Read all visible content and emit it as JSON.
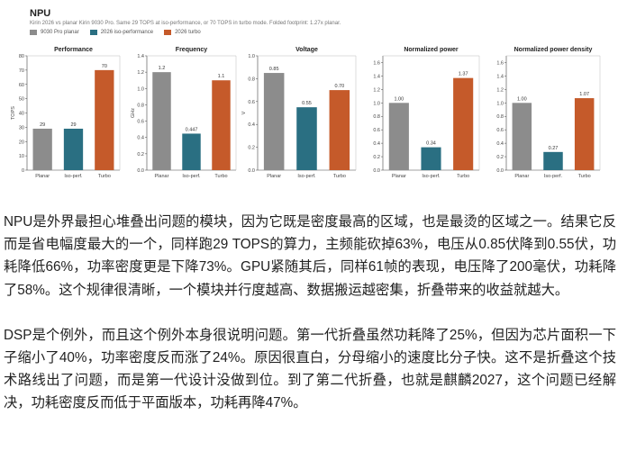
{
  "figure": {
    "title": "NPU",
    "subtitle": "Kirin 2026 vs planar Kirin 9030 Pro. Same 29 TOPS at iso-performance, or 70 TOPS in turbo mode. Folded footprint: 1.27x planar.",
    "legend": [
      {
        "label": "9030 Pro planar",
        "color": "#8c8c8c"
      },
      {
        "label": "2026 iso-performance",
        "color": "#2a6f82"
      },
      {
        "label": "2026 turbo",
        "color": "#c55a2a"
      }
    ]
  },
  "chart_data": [
    {
      "type": "bar",
      "title": "Performance",
      "ylabel": "TOPS",
      "categories": [
        "Planar",
        "Iso-perf.",
        "Turbo"
      ],
      "values": [
        29,
        29,
        70
      ],
      "value_labels": [
        "29",
        "29",
        "70"
      ],
      "ylim": [
        0,
        80
      ],
      "yticks": [
        0,
        10,
        20,
        30,
        40,
        50,
        60,
        70,
        80
      ],
      "ytick_labels": [
        "0",
        "10",
        "20",
        "30",
        "40",
        "50",
        "60",
        "70",
        "80"
      ]
    },
    {
      "type": "bar",
      "title": "Frequency",
      "ylabel": "GHz",
      "categories": [
        "Planar",
        "Iso-perf.",
        "Turbo"
      ],
      "values": [
        1.2,
        0.447,
        1.1
      ],
      "value_labels": [
        "1.2",
        "0.447",
        "1.1"
      ],
      "ylim": [
        0,
        1.4
      ],
      "yticks": [
        0,
        0.2,
        0.4,
        0.6,
        0.8,
        1.0,
        1.2,
        1.4
      ],
      "ytick_labels": [
        "0.0",
        "0.2",
        "0.4",
        "0.6",
        "0.8",
        "1.0",
        "1.2",
        "1.4"
      ]
    },
    {
      "type": "bar",
      "title": "Voltage",
      "ylabel": "V",
      "categories": [
        "Planar",
        "Iso-perf.",
        "Turbo"
      ],
      "values": [
        0.85,
        0.55,
        0.7
      ],
      "value_labels": [
        "0.85",
        "0.55",
        "0.70"
      ],
      "ylim": [
        0,
        1.0
      ],
      "yticks": [
        0,
        0.2,
        0.4,
        0.6,
        0.8,
        1.0
      ],
      "ytick_labels": [
        "0.0",
        "0.2",
        "0.4",
        "0.6",
        "0.8",
        "1.0"
      ]
    },
    {
      "type": "bar",
      "title": "Normalized power",
      "ylabel": "",
      "categories": [
        "Planar",
        "Iso-perf.",
        "Turbo"
      ],
      "values": [
        1.0,
        0.34,
        1.37
      ],
      "value_labels": [
        "1.00",
        "0.34",
        "1.37"
      ],
      "ylim": [
        0,
        1.7
      ],
      "yticks": [
        0,
        0.2,
        0.4,
        0.6,
        0.8,
        1.0,
        1.2,
        1.4,
        1.6
      ],
      "ytick_labels": [
        "0.0",
        "0.2",
        "0.4",
        "0.6",
        "0.8",
        "1.0",
        "1.2",
        "1.4",
        "1.6"
      ]
    },
    {
      "type": "bar",
      "title": "Normalized power density",
      "ylabel": "",
      "categories": [
        "Planar",
        "Iso-perf.",
        "Turbo"
      ],
      "values": [
        1.0,
        0.27,
        1.07
      ],
      "value_labels": [
        "1.00",
        "0.27",
        "1.07"
      ],
      "ylim": [
        0,
        1.7
      ],
      "yticks": [
        0,
        0.2,
        0.4,
        0.6,
        0.8,
        1.0,
        1.2,
        1.4,
        1.6
      ],
      "ytick_labels": [
        "0.0",
        "0.2",
        "0.4",
        "0.6",
        "0.8",
        "1.0",
        "1.2",
        "1.4",
        "1.6"
      ]
    }
  ],
  "article": {
    "paragraphs": [
      "NPU是外界最担心堆叠出问题的模块，因为它既是密度最高的区域，也是最烫的区域之一。结果它反而是省电幅度最大的一个，同样跑29 TOPS的算力，主频能砍掉63%，电压从0.85伏降到0.55伏，功耗降低66%，功率密度更是下降73%。GPU紧随其后，同样61帧的表现，电压降了200毫伏，功耗降了58%。这个规律很清晰，一个模块并行度越高、数据搬运越密集，折叠带来的收益就越大。",
      "DSP是个例外，而且这个例外本身很说明问题。第一代折叠虽然功耗降了25%，但因为芯片面积一下子缩小了40%，功率密度反而涨了24%。原因很直白，分母缩小的速度比分子快。这不是折叠这个技术路线出了问题，而是第一代设计没做到位。到了第二代折叠，也就是麒麟2027，这个问题已经解决，功耗密度反而低于平面版本，功耗再降47%。"
    ]
  }
}
